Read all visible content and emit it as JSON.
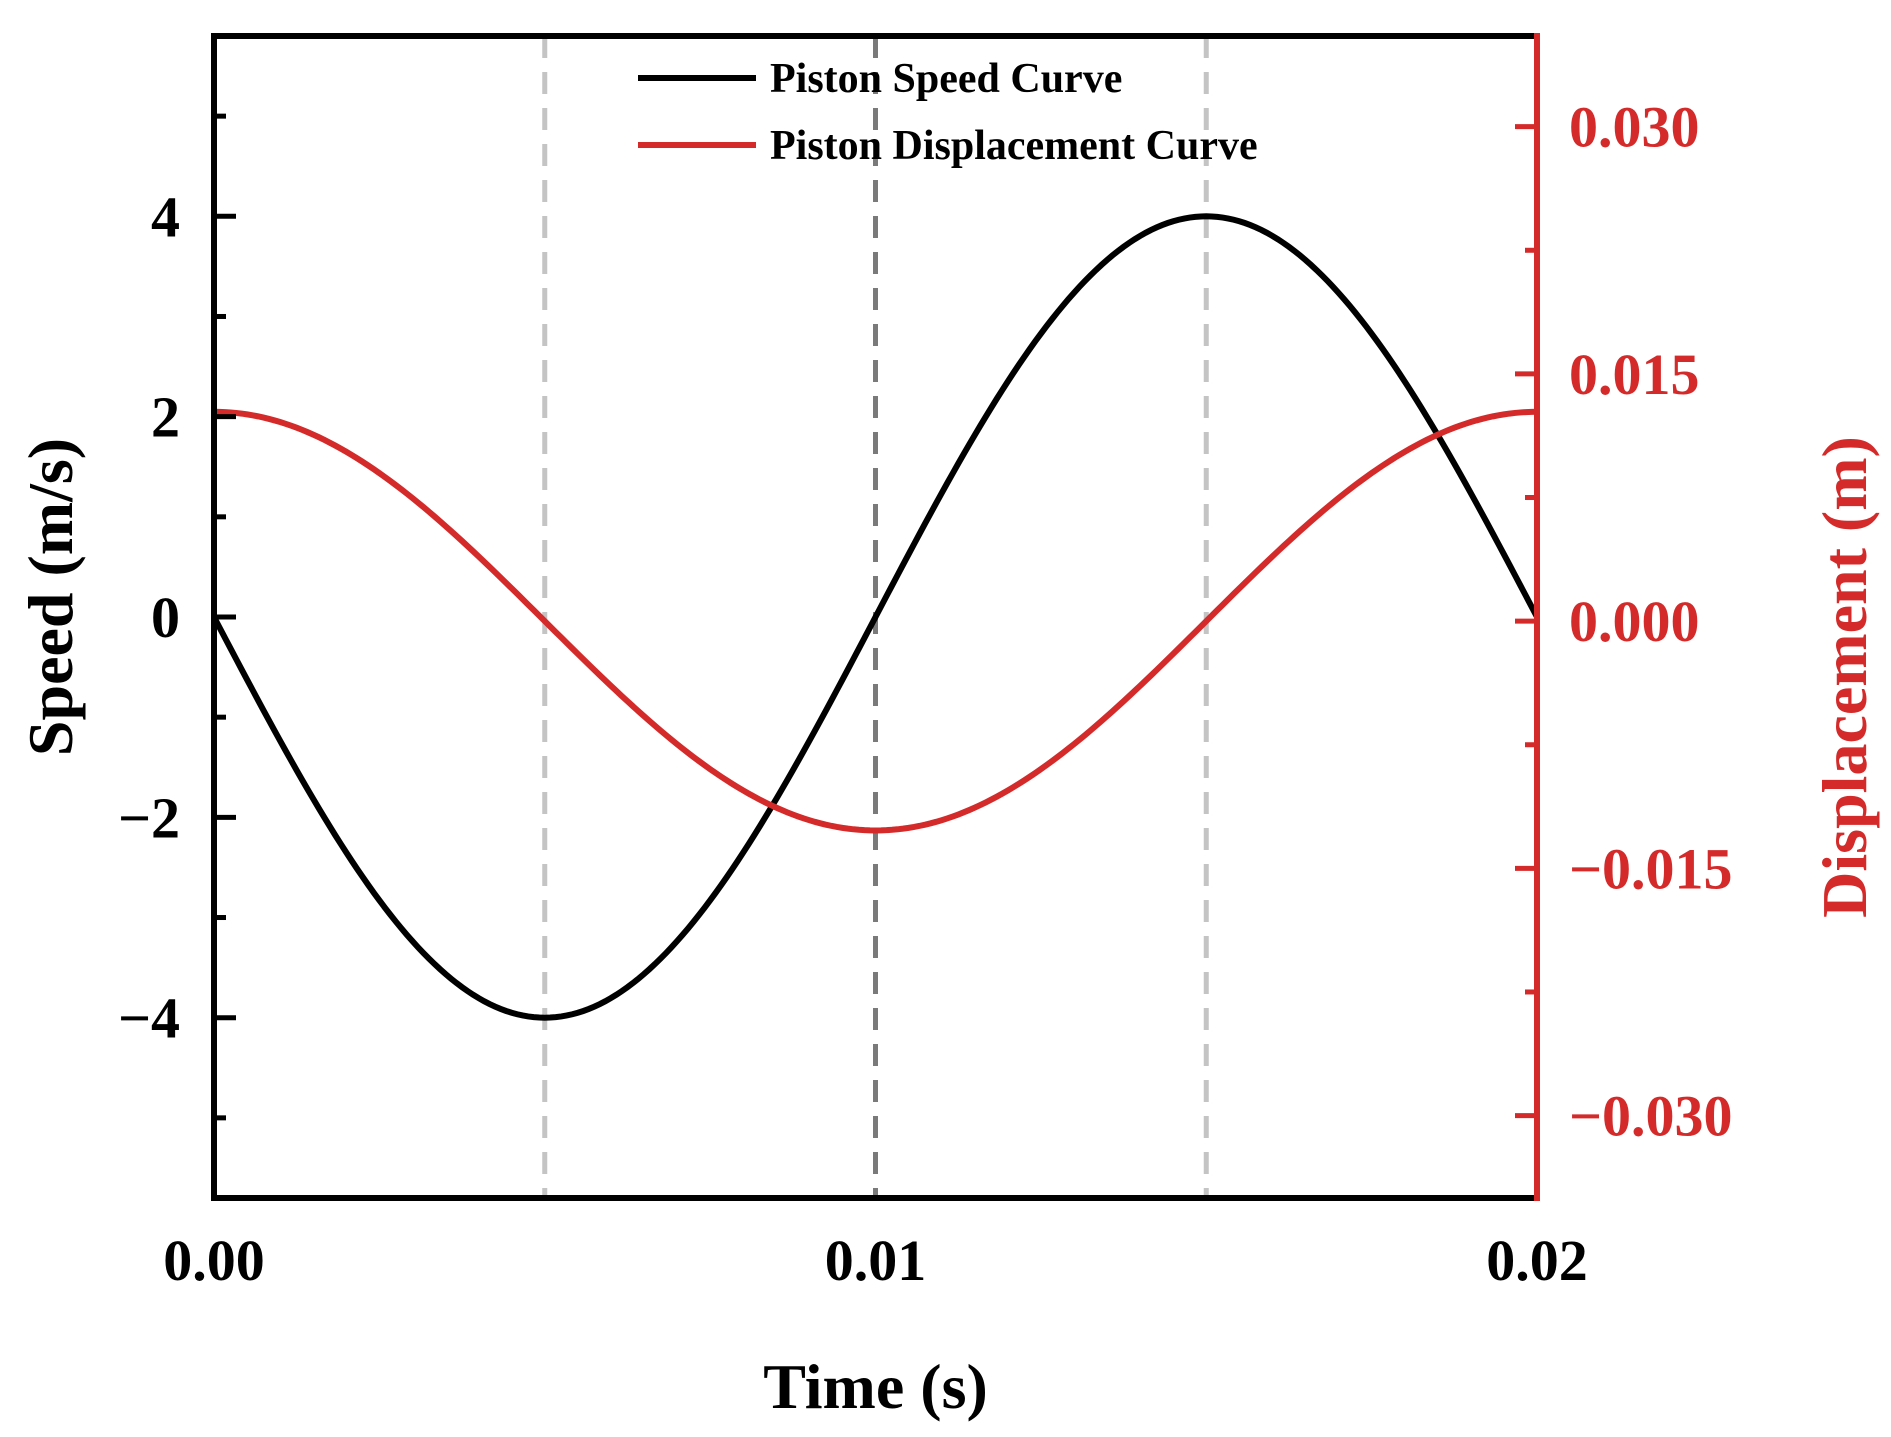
{
  "chart_data": {
    "type": "line",
    "xlabel": "Time (s)",
    "ylabel_left": "Speed (m/s)",
    "ylabel_right": "Displacement (m)",
    "xlim": [
      0,
      0.02
    ],
    "ylim_left": [
      -5.8,
      5.8
    ],
    "ylim_right": [
      -0.035,
      0.0355
    ],
    "x_ticks": [
      0,
      0.01,
      0.02
    ],
    "x_tick_labels": [
      "0.00",
      "0.01",
      "0.02"
    ],
    "y_left_ticks": [
      4,
      2,
      0,
      -2,
      -4
    ],
    "y_left_tick_labels": [
      "4",
      "2",
      "0",
      "−2",
      "−4"
    ],
    "y_right_ticks": [
      0.03,
      0.015,
      0,
      -0.015,
      -0.03
    ],
    "y_right_tick_labels": [
      "0.030",
      "0.015",
      "0.000",
      "−0.015",
      "−0.030"
    ],
    "reference_lines_x": [
      0.005,
      0.01,
      0.015
    ],
    "colors": {
      "speed": "#000000",
      "displacement": "#d42a2a",
      "ref_light": "#c4c4c4",
      "ref_dark": "#7a7a7a"
    },
    "series": [
      {
        "name": "Piston Speed Curve",
        "axis": "left",
        "x": [
          0,
          0.001,
          0.002,
          0.003,
          0.004,
          0.005,
          0.006,
          0.007,
          0.008,
          0.009,
          0.01,
          0.011,
          0.012,
          0.013,
          0.014,
          0.015,
          0.016,
          0.017,
          0.018,
          0.019,
          0.02
        ],
        "values": [
          0,
          -1.24,
          -2.35,
          -3.24,
          -3.8,
          -4.0,
          -3.8,
          -3.24,
          -2.35,
          -1.24,
          0,
          1.24,
          2.35,
          3.24,
          3.8,
          4.0,
          3.8,
          3.24,
          2.35,
          1.24,
          0
        ]
      },
      {
        "name": "Piston Displacement Curve",
        "axis": "right",
        "x": [
          0,
          0.001,
          0.002,
          0.003,
          0.004,
          0.005,
          0.006,
          0.007,
          0.008,
          0.009,
          0.01,
          0.011,
          0.012,
          0.013,
          0.014,
          0.015,
          0.016,
          0.017,
          0.018,
          0.019,
          0.02
        ],
        "values": [
          0.0127,
          0.0121,
          0.0103,
          0.0075,
          0.0039,
          0,
          -0.0039,
          -0.0075,
          -0.0103,
          -0.0121,
          -0.0127,
          -0.0121,
          -0.0103,
          -0.0075,
          -0.0039,
          0,
          0.0039,
          0.0075,
          0.0103,
          0.0121,
          0.0127
        ]
      }
    ],
    "legend": {
      "placement": "top-center",
      "entries": [
        "Piston Speed Curve",
        "Piston Displacement Curve"
      ]
    }
  }
}
